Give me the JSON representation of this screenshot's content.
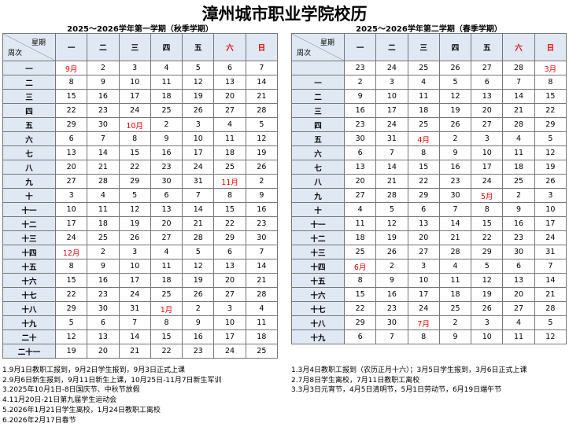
{
  "title": "漳州城市职业学院校历",
  "corner": {
    "day": "星期",
    "week": "周次"
  },
  "weekdays": [
    "一",
    "二",
    "三",
    "四",
    "五",
    "六",
    "日"
  ],
  "semesters": [
    {
      "subtitle": "2025～2026学年第一学期（秋季学期）",
      "rows": [
        {
          "week": "一",
          "days": [
            "9月",
            2,
            3,
            4,
            5,
            6,
            7
          ]
        },
        {
          "week": "二",
          "days": [
            8,
            9,
            10,
            11,
            12,
            13,
            14
          ]
        },
        {
          "week": "三",
          "days": [
            15,
            16,
            17,
            18,
            19,
            20,
            21
          ]
        },
        {
          "week": "四",
          "days": [
            22,
            23,
            24,
            25,
            26,
            27,
            28
          ]
        },
        {
          "week": "五",
          "days": [
            29,
            30,
            "10月",
            2,
            3,
            4,
            5
          ]
        },
        {
          "week": "六",
          "days": [
            6,
            7,
            8,
            9,
            10,
            11,
            12
          ]
        },
        {
          "week": "七",
          "days": [
            13,
            14,
            15,
            16,
            17,
            18,
            19
          ]
        },
        {
          "week": "八",
          "days": [
            20,
            21,
            22,
            23,
            24,
            25,
            26
          ]
        },
        {
          "week": "九",
          "days": [
            27,
            28,
            29,
            30,
            31,
            "11月",
            2
          ]
        },
        {
          "week": "十",
          "days": [
            3,
            4,
            5,
            6,
            7,
            8,
            9
          ]
        },
        {
          "week": "十一",
          "days": [
            10,
            11,
            12,
            13,
            14,
            15,
            16
          ]
        },
        {
          "week": "十二",
          "days": [
            17,
            18,
            19,
            20,
            21,
            22,
            23
          ]
        },
        {
          "week": "十三",
          "days": [
            24,
            25,
            26,
            27,
            28,
            29,
            30
          ]
        },
        {
          "week": "十四",
          "days": [
            "12月",
            2,
            3,
            4,
            5,
            6,
            7
          ]
        },
        {
          "week": "十五",
          "days": [
            8,
            9,
            10,
            11,
            12,
            13,
            14
          ]
        },
        {
          "week": "十六",
          "days": [
            15,
            16,
            17,
            18,
            19,
            20,
            21
          ]
        },
        {
          "week": "十七",
          "days": [
            22,
            23,
            24,
            25,
            26,
            27,
            28
          ]
        },
        {
          "week": "十八",
          "days": [
            29,
            30,
            31,
            "1月",
            2,
            3,
            4
          ]
        },
        {
          "week": "十九",
          "days": [
            5,
            6,
            7,
            8,
            9,
            10,
            11
          ]
        },
        {
          "week": "二十",
          "days": [
            12,
            13,
            14,
            15,
            16,
            17,
            18
          ]
        },
        {
          "week": "二十一",
          "days": [
            19,
            20,
            21,
            22,
            23,
            24,
            25
          ]
        }
      ],
      "notes": [
        "1.9月1日教职工报到，9月2日学生报到，9月3日正式上课",
        "2.9月6日新生报到，9月11日新生上课，10月25日-11月7日新生军训",
        "3.2025年10月1日-8日国庆节、中秋节放假",
        "4.11月20日-21日第九届学生运动会",
        "5.2026年1月21日学生离校，1月24日教职工离校",
        "6.2026年2月17日春节"
      ]
    },
    {
      "subtitle": "2025～2026学年第二学期（春季学期）",
      "rows": [
        {
          "week": null,
          "days": [
            23,
            24,
            25,
            26,
            27,
            28,
            "3月"
          ]
        },
        {
          "week": "一",
          "days": [
            2,
            3,
            4,
            5,
            6,
            7,
            8
          ]
        },
        {
          "week": "二",
          "days": [
            9,
            10,
            11,
            12,
            13,
            14,
            15
          ]
        },
        {
          "week": "三",
          "days": [
            16,
            17,
            18,
            19,
            20,
            21,
            22
          ]
        },
        {
          "week": "四",
          "days": [
            23,
            24,
            25,
            26,
            27,
            28,
            29
          ]
        },
        {
          "week": "五",
          "days": [
            30,
            31,
            "4月",
            2,
            3,
            4,
            5
          ]
        },
        {
          "week": "六",
          "days": [
            6,
            7,
            8,
            9,
            10,
            11,
            12
          ]
        },
        {
          "week": "七",
          "days": [
            13,
            14,
            15,
            16,
            17,
            18,
            19
          ]
        },
        {
          "week": "八",
          "days": [
            20,
            21,
            22,
            23,
            24,
            25,
            26
          ]
        },
        {
          "week": "九",
          "days": [
            27,
            28,
            29,
            30,
            "5月",
            2,
            3
          ]
        },
        {
          "week": "十",
          "days": [
            4,
            5,
            6,
            7,
            8,
            9,
            10
          ]
        },
        {
          "week": "十一",
          "days": [
            11,
            12,
            13,
            14,
            15,
            16,
            17
          ]
        },
        {
          "week": "十二",
          "days": [
            18,
            19,
            20,
            21,
            22,
            23,
            24
          ]
        },
        {
          "week": "十三",
          "days": [
            25,
            26,
            27,
            28,
            29,
            30,
            31
          ]
        },
        {
          "week": "十四",
          "days": [
            "6月",
            2,
            3,
            4,
            5,
            6,
            7
          ]
        },
        {
          "week": "十五",
          "days": [
            8,
            9,
            10,
            11,
            12,
            13,
            14
          ]
        },
        {
          "week": "十六",
          "days": [
            15,
            16,
            17,
            18,
            19,
            20,
            21
          ]
        },
        {
          "week": "十七",
          "days": [
            22,
            23,
            24,
            25,
            26,
            27,
            28
          ]
        },
        {
          "week": "十八",
          "days": [
            29,
            30,
            "7月",
            2,
            3,
            4,
            5
          ]
        },
        {
          "week": "十九",
          "days": [
            6,
            7,
            8,
            9,
            10,
            11,
            12
          ]
        }
      ],
      "notes": [
        "1.3月4日教职工报到（农历正月十六）；3月5日学生报到，3月6日正式上课",
        "2.7月8日学生离校，7月11日教职工离校",
        "3.3月3日元宵节，4月5日清明节，5月1日劳动节，6月19日端午节"
      ]
    }
  ]
}
